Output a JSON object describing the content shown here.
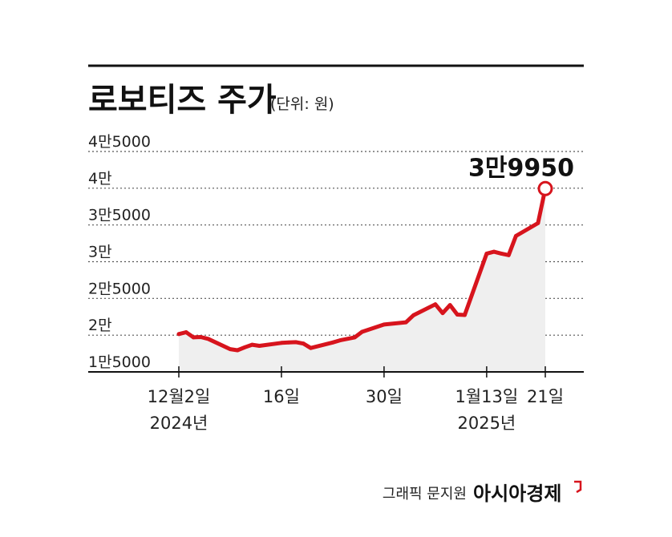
{
  "header": {
    "title": "로보티즈 주가",
    "unit": "(단위: 원)"
  },
  "credit": {
    "text": "그래픽 문지원",
    "brand": "아시아경제"
  },
  "colors": {
    "line": "#d7141d",
    "area": "#efefef",
    "grid": "#555555",
    "axis": "#111111"
  },
  "chart_data": {
    "type": "line",
    "title": "로보티즈 주가",
    "ylabel": "",
    "xlabel": "",
    "ylim": [
      15000,
      45000
    ],
    "y_ticks": [
      {
        "value": 15000,
        "label": "1만5000"
      },
      {
        "value": 20000,
        "label": "2만"
      },
      {
        "value": 25000,
        "label": "2만5000"
      },
      {
        "value": 30000,
        "label": "3만"
      },
      {
        "value": 35000,
        "label": "3만5000"
      },
      {
        "value": 40000,
        "label": "4만"
      },
      {
        "value": 45000,
        "label": "4만5000"
      }
    ],
    "x_ticks": [
      {
        "date": "2024-12-02",
        "label": "12월2일",
        "sublabel": "2024년"
      },
      {
        "date": "2024-12-16",
        "label": "16일",
        "sublabel": ""
      },
      {
        "date": "2024-12-30",
        "label": "30일",
        "sublabel": ""
      },
      {
        "date": "2025-01-13",
        "label": "1월13일",
        "sublabel": "2025년"
      },
      {
        "date": "2025-01-21",
        "label": "21일",
        "sublabel": ""
      }
    ],
    "x": [
      "2024-12-02",
      "2024-12-03",
      "2024-12-04",
      "2024-12-05",
      "2024-12-06",
      "2024-12-09",
      "2024-12-10",
      "2024-12-11",
      "2024-12-12",
      "2024-12-13",
      "2024-12-16",
      "2024-12-17",
      "2024-12-18",
      "2024-12-19",
      "2024-12-20",
      "2024-12-23",
      "2024-12-24",
      "2024-12-26",
      "2024-12-27",
      "2024-12-30",
      "2025-01-02",
      "2025-01-03",
      "2025-01-06",
      "2025-01-07",
      "2025-01-08",
      "2025-01-09",
      "2025-01-10",
      "2025-01-13",
      "2025-01-14",
      "2025-01-15",
      "2025-01-16",
      "2025-01-17",
      "2025-01-20",
      "2025-01-21"
    ],
    "series": [
      {
        "values": [
          20150,
          20400,
          19700,
          19750,
          19500,
          18100,
          17950,
          18350,
          18700,
          18550,
          18950,
          19000,
          19050,
          18850,
          18250,
          19000,
          19300,
          19700,
          20450,
          21450,
          21750,
          22700,
          24200,
          23000,
          24100,
          22800,
          22750,
          31100,
          31350,
          31100,
          30900,
          33500,
          35250,
          39950
        ]
      }
    ],
    "annotations": [
      {
        "date": "2025-01-21",
        "value": 39950,
        "label": "3만9950"
      }
    ],
    "grid": true,
    "legend": "none"
  }
}
